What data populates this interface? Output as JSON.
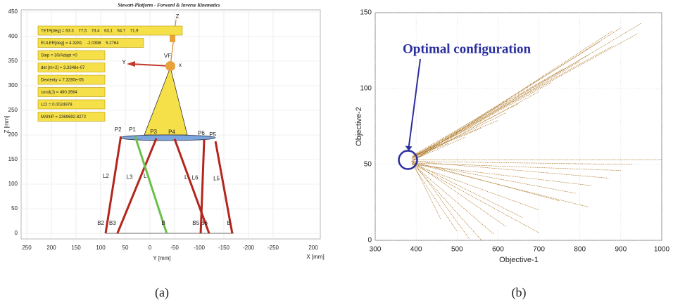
{
  "chart_data": [
    {
      "type": "line",
      "title": "Stewart-Platform - Forward & Inverse Kinematics",
      "caption": "(a)",
      "xlabel": "Y [mm]",
      "ylabel": "Z [mm]",
      "xlabel2": "X [mm]",
      "x2ticks": [
        200
      ],
      "xlim": [
        250,
        -250
      ],
      "xticks": [
        250,
        200,
        150,
        100,
        50,
        0,
        -50,
        -100,
        -150,
        -200,
        -250
      ],
      "ylim": [
        0,
        450
      ],
      "yticks": [
        0,
        50,
        100,
        150,
        200,
        250,
        300,
        350,
        400,
        450
      ],
      "grid": true,
      "info": [
        "TETA[deg] = 63.3    77.5    73.4    63.1    64.7    71.9",
        "EULER[deg] = 4.3281    -2.0396    5.2764",
        "Step = 30/Adapt =0",
        "det [m+2] = 3.3348e-07",
        "Dexterity = 7.3280e-05",
        "cond(J) = 490.3564",
        "LCI = 0.0024978",
        "MANIP = 2369692.8272"
      ],
      "frame_labels": {
        "origin": "VF",
        "z": "Z",
        "y": "Y",
        "x": "x"
      },
      "series": [
        {
          "name": "L2",
          "color": "#b3261e",
          "x": [
            90,
            59
          ],
          "values": [
            0,
            197
          ],
          "bottom_label": "B2",
          "top_label": "P2"
        },
        {
          "name": "L3",
          "color": "#b3261e",
          "x": [
            66,
            -13
          ],
          "values": [
            0,
            193
          ],
          "bottom_label": "B3",
          "top_label": "P3"
        },
        {
          "name": "L",
          "color": "#6cc04a",
          "x": [
            -34,
            30
          ],
          "values": [
            0,
            197
          ],
          "bottom_label": "B",
          "top_label": "P1"
        },
        {
          "name": "L",
          "color": "#b3261e",
          "x": [
            -120,
            -50
          ],
          "values": [
            0,
            192
          ],
          "bottom_label": "B6",
          "top_label": "P4"
        },
        {
          "name": "L6",
          "color": "#b3261e",
          "x": [
            -103,
            -110
          ],
          "values": [
            0,
            190
          ],
          "bottom_label": "B5",
          "top_label": "P6"
        },
        {
          "name": "L5",
          "color": "#b3261e",
          "x": [
            -167,
            -133
          ],
          "values": [
            0,
            187
          ],
          "bottom_label": "B",
          "top_label": "P5"
        }
      ]
    },
    {
      "type": "line",
      "caption": "(b)",
      "xlabel": "Objective-1",
      "ylabel": "Objective-2",
      "xlim": [
        300,
        1000
      ],
      "xticks": [
        300,
        400,
        500,
        600,
        700,
        800,
        900,
        1000
      ],
      "ylim": [
        0,
        150
      ],
      "yticks": [
        0,
        50,
        100,
        150
      ],
      "grid": true,
      "color": "#b07a2c",
      "annotation": "Optimal configuration",
      "highlight": {
        "x": 380,
        "y": 53
      },
      "series": [
        {
          "x": [
            390,
            950
          ],
          "values": [
            53,
            143
          ]
        },
        {
          "x": [
            392,
            940
          ],
          "values": [
            55,
            136
          ]
        },
        {
          "x": [
            388,
            900
          ],
          "values": [
            52,
            140
          ]
        },
        {
          "x": [
            395,
            880
          ],
          "values": [
            56,
            128
          ]
        },
        {
          "x": [
            390,
            850
          ],
          "values": [
            54,
            131
          ]
        },
        {
          "x": [
            393,
            820
          ],
          "values": [
            55,
            122
          ]
        },
        {
          "x": [
            390,
            800
          ],
          "values": [
            52,
            118
          ]
        },
        {
          "x": [
            392,
            760
          ],
          "values": [
            56,
            113
          ]
        },
        {
          "x": [
            389,
            730
          ],
          "values": [
            54,
            104
          ]
        },
        {
          "x": [
            395,
            700
          ],
          "values": [
            53,
            98
          ]
        },
        {
          "x": [
            390,
            650
          ],
          "values": [
            55,
            90
          ]
        },
        {
          "x": [
            391,
            620
          ],
          "values": [
            54,
            84
          ]
        },
        {
          "x": [
            393,
            600
          ],
          "values": [
            56,
            79
          ]
        },
        {
          "x": [
            390,
            560
          ],
          "values": [
            55,
            74
          ]
        },
        {
          "x": [
            392,
            520
          ],
          "values": [
            53,
            68
          ]
        },
        {
          "x": [
            390,
            480
          ],
          "values": [
            55,
            64
          ]
        },
        {
          "x": [
            395,
            1000
          ],
          "values": [
            53,
            53
          ]
        },
        {
          "x": [
            392,
            930
          ],
          "values": [
            52,
            50
          ]
        },
        {
          "x": [
            390,
            900
          ],
          "values": [
            51,
            46
          ]
        },
        {
          "x": [
            393,
            870
          ],
          "values": [
            52,
            41
          ]
        },
        {
          "x": [
            390,
            830
          ],
          "values": [
            50,
            36
          ]
        },
        {
          "x": [
            392,
            790
          ],
          "values": [
            51,
            31
          ]
        },
        {
          "x": [
            390,
            750
          ],
          "values": [
            52,
            26
          ]
        },
        {
          "x": [
            391,
            700
          ],
          "values": [
            50,
            20
          ]
        },
        {
          "x": [
            393,
            660
          ],
          "values": [
            51,
            15
          ]
        },
        {
          "x": [
            390,
            620
          ],
          "values": [
            52,
            9
          ]
        },
        {
          "x": [
            392,
            590
          ],
          "values": [
            50,
            4
          ]
        },
        {
          "x": [
            390,
            560
          ],
          "values": [
            51,
            0
          ]
        },
        {
          "x": [
            393,
            530
          ],
          "values": [
            52,
            1
          ]
        },
        {
          "x": [
            390,
            500
          ],
          "values": [
            50,
            6
          ]
        },
        {
          "x": [
            392,
            460
          ],
          "values": [
            51,
            14
          ]
        },
        {
          "x": [
            394,
            700
          ],
          "values": [
            50,
            5
          ]
        },
        {
          "x": [
            392,
            820
          ],
          "values": [
            51,
            22
          ]
        },
        {
          "x": [
            390,
            880
          ],
          "values": [
            52,
            138
          ]
        }
      ]
    }
  ]
}
